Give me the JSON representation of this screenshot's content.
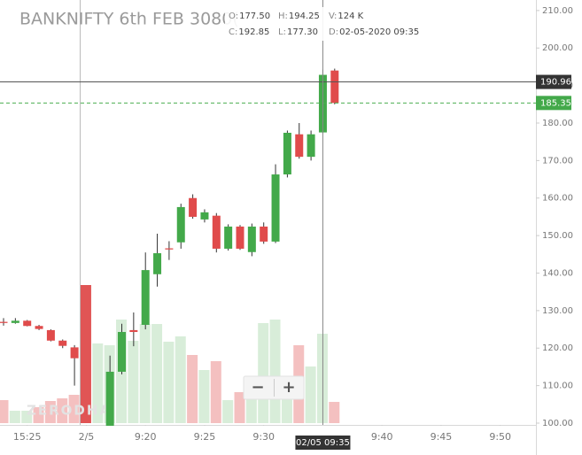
{
  "chart_data": {
    "type": "candlestick",
    "title": "BANKNIFTY 6th FEB 3080(",
    "info": {
      "labels": [
        "O:",
        "H:",
        "V:",
        "C:",
        "L:",
        "D:"
      ],
      "values": [
        "177.50",
        "194.25",
        "124 K",
        "192.85",
        "177.30",
        "02-05-2020 09:35"
      ]
    },
    "categories": [
      null,
      null,
      "15:25",
      null,
      null,
      null,
      null,
      "2/5",
      null,
      null,
      null,
      null,
      "9:20",
      null,
      null,
      null,
      null,
      "9:25",
      null,
      null,
      null,
      null,
      "9:30",
      null,
      null,
      null,
      null,
      null,
      null,
      null,
      null,
      null,
      "9:40",
      null,
      null,
      null,
      null,
      "9:45",
      null,
      null,
      null,
      null,
      "9:50",
      null,
      null
    ],
    "open": [
      127,
      126.7,
      127.3,
      125.9,
      124.8,
      122,
      120.2,
      null,
      null,
      98,
      113.7,
      124.8,
      126.2,
      139.7,
      146.6,
      148.2,
      160,
      154.3,
      155.3,
      146.5,
      152.4,
      145.6,
      152.4,
      148.4,
      166.3,
      177,
      171,
      177.5,
      194,
      null,
      null,
      null,
      null,
      null,
      null,
      null,
      null,
      null,
      null,
      null,
      null,
      null,
      null,
      null,
      null
    ],
    "high": [
      128,
      128,
      127.5,
      126.2,
      125,
      122.3,
      120.8,
      null,
      null,
      118,
      126.5,
      129.5,
      145.5,
      150.5,
      148.5,
      158.5,
      161,
      157,
      156,
      153,
      152.8,
      153.2,
      153.5,
      169,
      178,
      180,
      178,
      194.25,
      194.5,
      null,
      null,
      null,
      null,
      null,
      null,
      null,
      null,
      null,
      null,
      null,
      null,
      null,
      null,
      null,
      null
    ],
    "low": [
      126,
      126.5,
      125.8,
      124.8,
      121.8,
      120,
      110,
      null,
      null,
      97,
      113,
      120.5,
      125,
      136.4,
      143.5,
      146.5,
      154.5,
      153.5,
      145.5,
      146,
      146.2,
      144.5,
      147.8,
      148,
      165.5,
      170.5,
      170,
      177.3,
      185,
      null,
      null,
      null,
      null,
      null,
      null,
      null,
      null,
      null,
      null,
      null,
      null,
      null,
      null,
      null,
      null
    ],
    "close": [
      126.7,
      127.3,
      125.9,
      125.1,
      122,
      120.6,
      117.3,
      null,
      null,
      113.7,
      124.3,
      124.3,
      140.8,
      145.3,
      146.3,
      157.6,
      155,
      156.2,
      146.5,
      152.4,
      146.5,
      152.4,
      148.4,
      166.3,
      177.4,
      171,
      177,
      192.85,
      185.35,
      null,
      null,
      null,
      null,
      null,
      null,
      null,
      null,
      null,
      null,
      null,
      null,
      null,
      null,
      null,
      null
    ],
    "up_color": "#43a94a",
    "down_color": "#e04b4b",
    "volume": [
      26,
      14,
      14,
      18,
      25,
      28,
      32,
      156,
      90,
      88,
      117,
      93,
      112,
      112,
      92,
      98,
      77,
      60,
      70,
      26,
      35,
      32,
      113,
      117,
      40,
      88,
      64,
      101,
      24,
      null,
      null,
      null,
      null,
      null,
      null,
      null,
      null,
      null,
      null,
      null,
      null,
      null,
      null,
      null,
      null
    ],
    "volume_colors": [
      "rgba(224,75,75,0.35)",
      "rgba(76,175,80,0.22)",
      "rgba(76,175,80,0.22)",
      "rgba(224,75,75,0.35)",
      "rgba(224,75,75,0.35)",
      "rgba(224,75,75,0.35)",
      "rgba(224,75,75,0.35)",
      "#e05555",
      "rgba(76,175,80,0.22)",
      "rgba(76,175,80,0.22)",
      "rgba(76,175,80,0.22)",
      "rgba(76,175,80,0.22)",
      "rgba(76,175,80,0.22)",
      "rgba(76,175,80,0.22)",
      "rgba(76,175,80,0.22)",
      "rgba(76,175,80,0.22)",
      "rgba(224,75,75,0.35)",
      "rgba(76,175,80,0.22)",
      "rgba(224,75,75,0.35)",
      "rgba(76,175,80,0.22)",
      "rgba(224,75,75,0.35)",
      "rgba(76,175,80,0.22)",
      "rgba(76,175,80,0.22)",
      "rgba(76,175,80,0.22)",
      "rgba(76,175,80,0.22)",
      "rgba(224,75,75,0.35)",
      "rgba(76,175,80,0.22)",
      "rgba(76,175,80,0.22)",
      "rgba(224,75,75,0.35)",
      null,
      null,
      null,
      null,
      null,
      null,
      null,
      null,
      null,
      null,
      null,
      null,
      null,
      null,
      null,
      null
    ],
    "ylim": [
      100,
      212.8
    ],
    "yticks": [
      {
        "value": 100,
        "label": "100.00"
      },
      {
        "value": 110,
        "label": "110.00"
      },
      {
        "value": 120,
        "label": "120.00"
      },
      {
        "value": 130,
        "label": "130.00"
      },
      {
        "value": 140,
        "label": "140.00"
      },
      {
        "value": 150,
        "label": "150.00"
      },
      {
        "value": 160,
        "label": "160.00"
      },
      {
        "value": 170,
        "label": "170.00"
      },
      {
        "value": 180,
        "label": "180.00"
      },
      {
        "value": 190,
        "label": "190.00"
      },
      {
        "value": 200,
        "label": "200.00"
      },
      {
        "value": 210,
        "label": "210.00"
      }
    ],
    "crosshair": {
      "value": 190.96,
      "index": 27,
      "x_label": "02/05 09:35"
    },
    "last_price": 185.35,
    "watermark": "ZERODHA",
    "zoom": [
      "−",
      "+"
    ]
  }
}
